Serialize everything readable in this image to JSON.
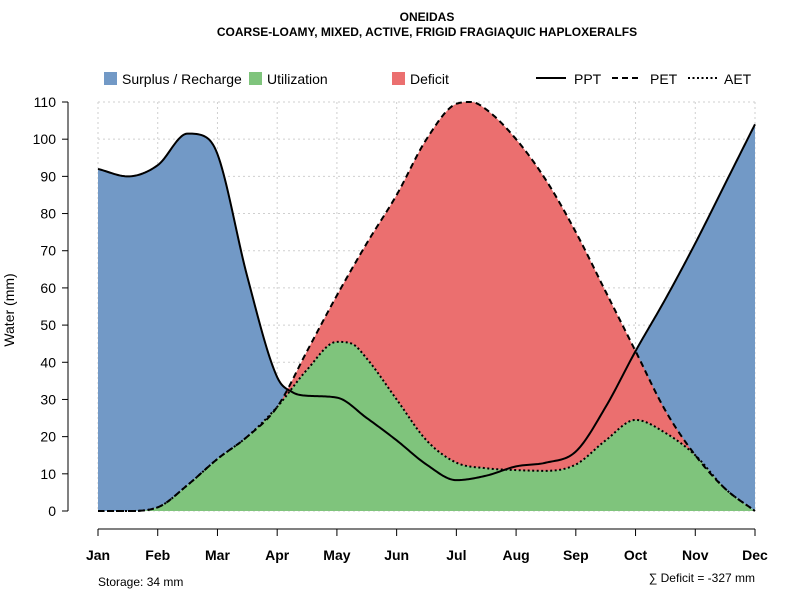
{
  "chart_data": {
    "type": "area",
    "title": "ONEIDAS",
    "subtitle": "COARSE-LOAMY, MIXED, ACTIVE, FRIGID FRAGIAQUIC HAPLOXERALFS",
    "ylabel": "Water (mm)",
    "xlabel": "",
    "ylim": [
      0,
      110
    ],
    "yticks": [
      "0",
      "10",
      "20",
      "30",
      "40",
      "50",
      "60",
      "70",
      "80",
      "90",
      "100",
      "110"
    ],
    "categories": [
      "Jan",
      "Feb",
      "Mar",
      "Apr",
      "May",
      "Jun",
      "Jul",
      "Aug",
      "Sep",
      "Oct",
      "Nov",
      "Dec"
    ],
    "grid": true,
    "legend_position": "top",
    "legend": [
      {
        "key": "surplus",
        "label": "Surplus / Recharge",
        "kind": "fill",
        "color": "#7299C6"
      },
      {
        "key": "utilization",
        "label": "Utilization",
        "kind": "fill",
        "color": "#7FC47C"
      },
      {
        "key": "deficit",
        "label": "Deficit",
        "kind": "fill",
        "color": "#EB6F6F"
      },
      {
        "key": "ppt",
        "label": "PPT",
        "kind": "line",
        "dash": "solid"
      },
      {
        "key": "pet",
        "label": "PET",
        "kind": "line",
        "dash": "dashed"
      },
      {
        "key": "aet",
        "label": "AET",
        "kind": "line",
        "dash": "dotted"
      }
    ],
    "series": [
      {
        "name": "PPT",
        "points": [
          [
            1,
            92
          ],
          [
            1.5,
            90
          ],
          [
            2,
            93
          ],
          [
            2.5,
            101.5
          ],
          [
            2.75,
            101
          ],
          [
            3,
            96
          ],
          [
            3.5,
            63
          ],
          [
            4,
            36
          ],
          [
            4.25,
            32
          ],
          [
            4.5,
            31
          ],
          [
            5,
            30.5
          ],
          [
            5.5,
            25
          ],
          [
            6,
            19
          ],
          [
            6.5,
            12.5
          ],
          [
            7,
            8.3
          ],
          [
            7.5,
            9.5
          ],
          [
            8,
            12
          ],
          [
            8.5,
            13
          ],
          [
            9,
            16
          ],
          [
            9.5,
            28
          ],
          [
            10,
            43
          ],
          [
            10.5,
            57
          ],
          [
            11,
            72
          ],
          [
            11.5,
            88
          ],
          [
            12,
            104
          ]
        ]
      },
      {
        "name": "PET",
        "points": [
          [
            1,
            0
          ],
          [
            1.5,
            0
          ],
          [
            2,
            1
          ],
          [
            2.5,
            7
          ],
          [
            3,
            14
          ],
          [
            3.5,
            20
          ],
          [
            4,
            28
          ],
          [
            4.5,
            43
          ],
          [
            5,
            58
          ],
          [
            5.5,
            72
          ],
          [
            6,
            85
          ],
          [
            6.5,
            100
          ],
          [
            7,
            109.5
          ],
          [
            7.25,
            110
          ],
          [
            7.5,
            108
          ],
          [
            8,
            100
          ],
          [
            8.5,
            89
          ],
          [
            9,
            75
          ],
          [
            9.5,
            59
          ],
          [
            10,
            43
          ],
          [
            10.5,
            27
          ],
          [
            11,
            15
          ],
          [
            11.5,
            6
          ],
          [
            12,
            0
          ]
        ]
      },
      {
        "name": "AET",
        "points": [
          [
            1,
            0
          ],
          [
            1.5,
            0
          ],
          [
            2,
            1
          ],
          [
            2.5,
            7
          ],
          [
            3,
            14
          ],
          [
            3.5,
            20
          ],
          [
            4,
            28
          ],
          [
            4.5,
            38
          ],
          [
            5,
            45.5
          ],
          [
            5.25,
            45
          ],
          [
            5.5,
            41
          ],
          [
            6,
            30
          ],
          [
            6.5,
            19
          ],
          [
            7,
            13
          ],
          [
            7.5,
            11.5
          ],
          [
            8,
            11
          ],
          [
            8.5,
            10.8
          ],
          [
            9,
            12.5
          ],
          [
            9.5,
            19
          ],
          [
            10,
            24.5
          ],
          [
            10.5,
            21
          ],
          [
            11,
            15
          ],
          [
            11.5,
            6
          ],
          [
            12,
            0
          ]
        ]
      }
    ],
    "footnotes": {
      "storage": "Storage: 34 mm",
      "deficit": "∑ Deficit = -327 mm"
    }
  },
  "colors": {
    "surplus": "#7299C6",
    "utilization": "#7FC47C",
    "deficit": "#EB6F6F",
    "line": "#000000"
  }
}
